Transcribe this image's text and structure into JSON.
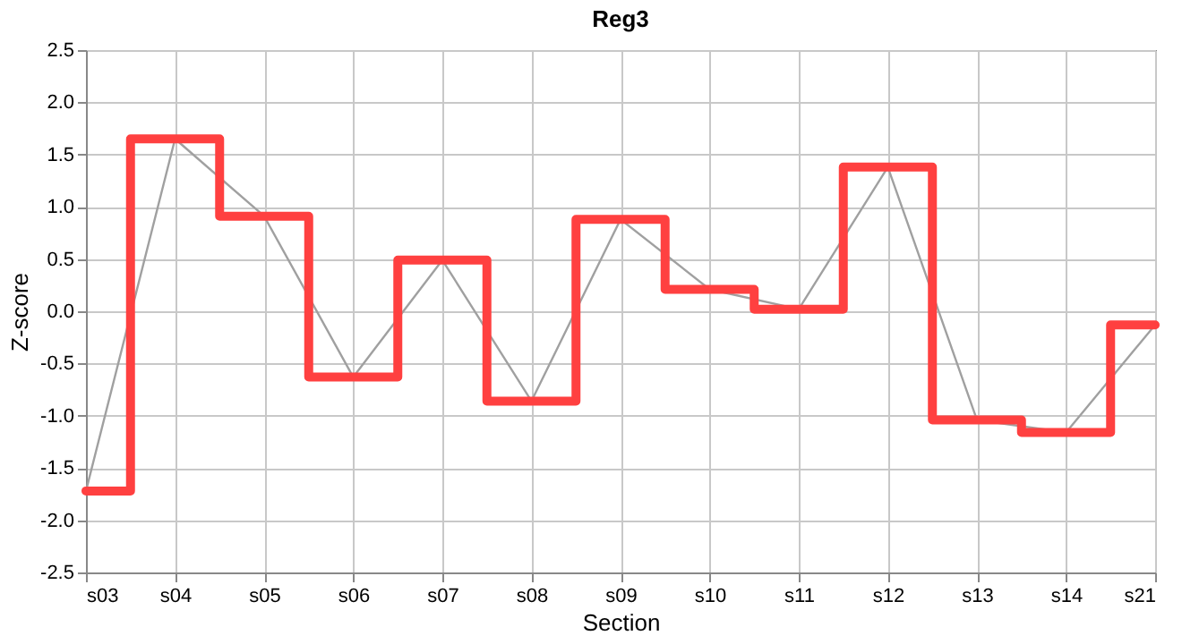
{
  "chart_data": {
    "type": "line",
    "title": "Reg3",
    "xlabel": "Section",
    "ylabel": "Z-score",
    "categories": [
      "s03",
      "s04",
      "s05",
      "s06",
      "s07",
      "s08",
      "s09",
      "s10",
      "s11",
      "s12",
      "s13",
      "s14",
      "s21"
    ],
    "series": [
      {
        "type": "line",
        "color": "#a0a0a0",
        "values": [
          -1.72,
          1.65,
          0.91,
          -0.63,
          0.49,
          -0.86,
          0.88,
          0.21,
          0.02,
          1.38,
          -1.04,
          -1.16,
          -0.13
        ]
      },
      {
        "type": "step",
        "color": "#ff4040",
        "values": [
          -1.72,
          1.65,
          0.91,
          -0.63,
          0.49,
          -0.86,
          0.88,
          0.21,
          0.02,
          1.38,
          -1.04,
          -1.16,
          -0.13
        ]
      }
    ],
    "ylim": [
      -2.5,
      2.5
    ],
    "yticks": [
      {
        "value": -2.5,
        "label": "-2.5"
      },
      {
        "value": -2,
        "label": "-2.0"
      },
      {
        "value": -1.5,
        "label": "-1.5"
      },
      {
        "value": -1,
        "label": "-1.0"
      },
      {
        "value": -0.5,
        "label": "-0.5"
      },
      {
        "value": 0,
        "label": "0.0"
      },
      {
        "value": 0.5,
        "label": "0.5"
      },
      {
        "value": 1,
        "label": "1.0"
      },
      {
        "value": 1.5,
        "label": "1.5"
      },
      {
        "value": 2,
        "label": "2.0"
      },
      {
        "value": 2.5,
        "label": "2.5"
      }
    ],
    "grid": true
  }
}
